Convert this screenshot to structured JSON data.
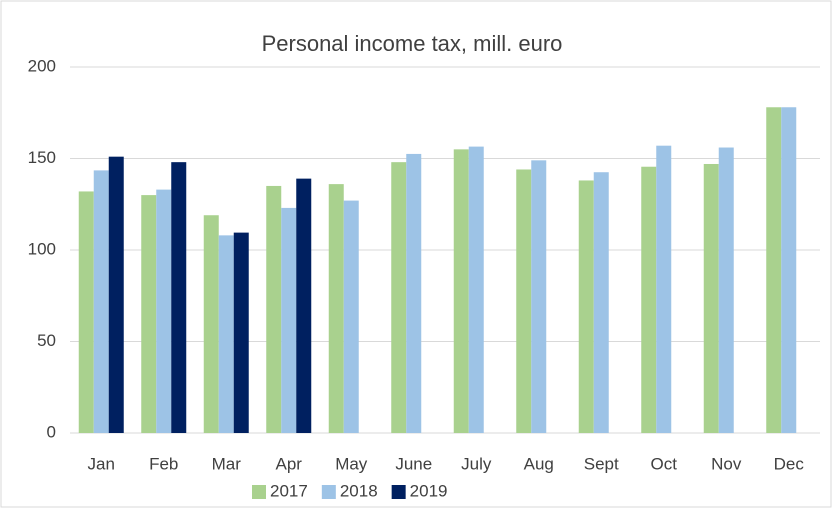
{
  "chart_data": {
    "type": "bar",
    "title": "Personal income tax, mill. euro",
    "categories": [
      "Jan",
      "Feb",
      "Mar",
      "Apr",
      "May",
      "June",
      "July",
      "Aug",
      "Sept",
      "Oct",
      "Nov",
      "Dec"
    ],
    "series": [
      {
        "name": "2017",
        "color": "#a9d18e",
        "values": [
          132,
          130,
          119,
          135,
          136,
          148,
          155,
          144,
          138,
          145.5,
          147,
          178
        ]
      },
      {
        "name": "2018",
        "color": "#9dc3e6",
        "values": [
          143.5,
          133,
          108,
          123,
          127,
          152.5,
          156.5,
          149,
          142.5,
          157,
          156,
          178
        ]
      },
      {
        "name": "2019",
        "color": "#002060",
        "values": [
          151,
          148,
          109.5,
          139,
          null,
          null,
          null,
          null,
          null,
          null,
          null,
          null
        ]
      }
    ],
    "ylim": [
      0,
      200
    ],
    "yticks": [
      0,
      50,
      100,
      150,
      200
    ],
    "grid": true,
    "legend": "bottom"
  }
}
